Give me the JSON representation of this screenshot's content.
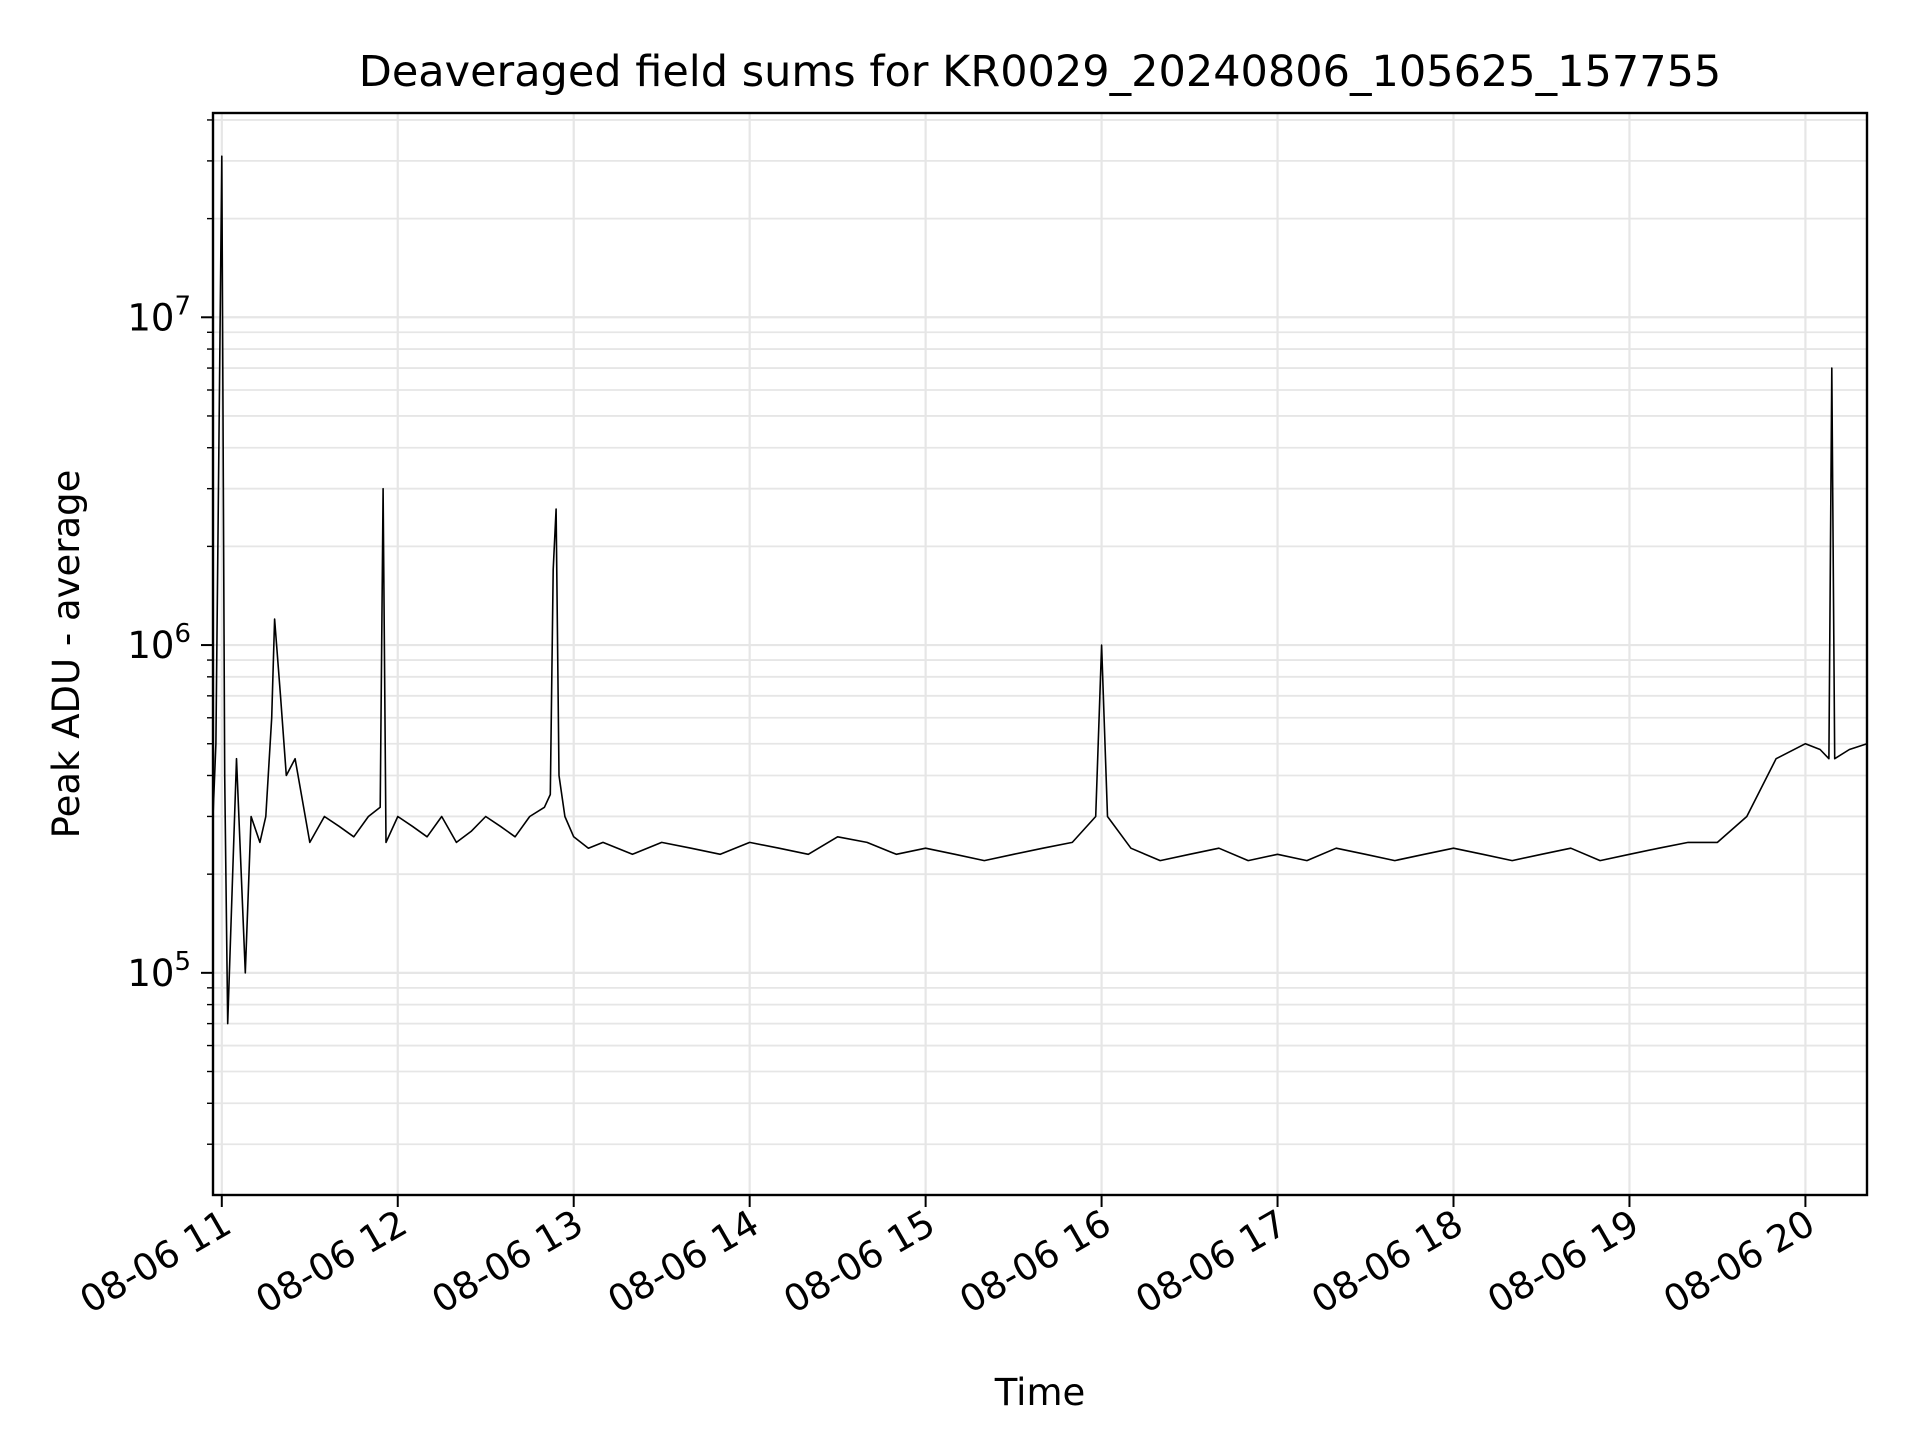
{
  "chart_data": {
    "type": "line",
    "title": "Deaveraged field sums for KR0029_20240806_105625_157755",
    "xlabel": "Time",
    "ylabel": "Peak ADU - average",
    "x_scale": "time",
    "y_scale": "log",
    "grid": true,
    "legend": "none",
    "line_color": "#000000",
    "grid_color": "#e6e6e6",
    "xlim": [
      "08-06 10:57",
      "08-06 20:21"
    ],
    "ylim": [
      21000,
      42000000
    ],
    "x_ticks": [
      {
        "value": "08-06 11:00",
        "label": "08-06 11"
      },
      {
        "value": "08-06 12:00",
        "label": "08-06 12"
      },
      {
        "value": "08-06 13:00",
        "label": "08-06 13"
      },
      {
        "value": "08-06 14:00",
        "label": "08-06 14"
      },
      {
        "value": "08-06 15:00",
        "label": "08-06 15"
      },
      {
        "value": "08-06 16:00",
        "label": "08-06 16"
      },
      {
        "value": "08-06 17:00",
        "label": "08-06 17"
      },
      {
        "value": "08-06 18:00",
        "label": "08-06 18"
      },
      {
        "value": "08-06 19:00",
        "label": "08-06 19"
      },
      {
        "value": "08-06 20:00",
        "label": "08-06 20"
      }
    ],
    "y_ticks": [
      {
        "value": 100000,
        "base": "10",
        "exp": "5"
      },
      {
        "value": 1000000,
        "base": "10",
        "exp": "6"
      },
      {
        "value": 10000000,
        "base": "10",
        "exp": "7"
      }
    ],
    "series": [
      {
        "x": [
          "08-06 10:57",
          "08-06 10:58",
          "08-06 11:00",
          "08-06 11:01",
          "08-06 11:02",
          "08-06 11:05",
          "08-06 11:08",
          "08-06 11:10",
          "08-06 11:13",
          "08-06 11:15",
          "08-06 11:17",
          "08-06 11:18",
          "08-06 11:20",
          "08-06 11:22",
          "08-06 11:25",
          "08-06 11:30",
          "08-06 11:35",
          "08-06 11:40",
          "08-06 11:45",
          "08-06 11:50",
          "08-06 11:54",
          "08-06 11:55",
          "08-06 11:56",
          "08-06 12:00",
          "08-06 12:05",
          "08-06 12:10",
          "08-06 12:15",
          "08-06 12:20",
          "08-06 12:25",
          "08-06 12:30",
          "08-06 12:35",
          "08-06 12:40",
          "08-06 12:45",
          "08-06 12:50",
          "08-06 12:52",
          "08-06 12:53",
          "08-06 12:54",
          "08-06 12:55",
          "08-06 12:57",
          "08-06 13:00",
          "08-06 13:05",
          "08-06 13:10",
          "08-06 13:20",
          "08-06 13:30",
          "08-06 13:40",
          "08-06 13:50",
          "08-06 14:00",
          "08-06 14:10",
          "08-06 14:20",
          "08-06 14:30",
          "08-06 14:40",
          "08-06 14:50",
          "08-06 15:00",
          "08-06 15:10",
          "08-06 15:20",
          "08-06 15:30",
          "08-06 15:40",
          "08-06 15:50",
          "08-06 15:58",
          "08-06 16:00",
          "08-06 16:02",
          "08-06 16:10",
          "08-06 16:20",
          "08-06 16:30",
          "08-06 16:40",
          "08-06 16:50",
          "08-06 17:00",
          "08-06 17:10",
          "08-06 17:20",
          "08-06 17:30",
          "08-06 17:40",
          "08-06 17:50",
          "08-06 18:00",
          "08-06 18:10",
          "08-06 18:20",
          "08-06 18:30",
          "08-06 18:40",
          "08-06 18:50",
          "08-06 19:00",
          "08-06 19:10",
          "08-06 19:20",
          "08-06 19:30",
          "08-06 19:40",
          "08-06 19:50",
          "08-06 20:00",
          "08-06 20:05",
          "08-06 20:08",
          "08-06 20:09",
          "08-06 20:10",
          "08-06 20:15",
          "08-06 20:21"
        ],
        "values": [
          300000,
          500000,
          31000000,
          400000,
          70000,
          450000,
          100000,
          300000,
          250000,
          300000,
          600000,
          1200000,
          700000,
          400000,
          450000,
          250000,
          300000,
          280000,
          260000,
          300000,
          320000,
          3000000,
          250000,
          300000,
          280000,
          260000,
          300000,
          250000,
          270000,
          300000,
          280000,
          260000,
          300000,
          320000,
          350000,
          1700000,
          2600000,
          400000,
          300000,
          260000,
          240000,
          250000,
          230000,
          250000,
          240000,
          230000,
          250000,
          240000,
          230000,
          260000,
          250000,
          230000,
          240000,
          230000,
          220000,
          230000,
          240000,
          250000,
          300000,
          1000000,
          300000,
          240000,
          220000,
          230000,
          240000,
          220000,
          230000,
          220000,
          240000,
          230000,
          220000,
          230000,
          240000,
          230000,
          220000,
          230000,
          240000,
          220000,
          230000,
          240000,
          250000,
          250000,
          300000,
          450000,
          500000,
          480000,
          450000,
          7000000,
          450000,
          480000,
          500000
        ]
      }
    ]
  }
}
